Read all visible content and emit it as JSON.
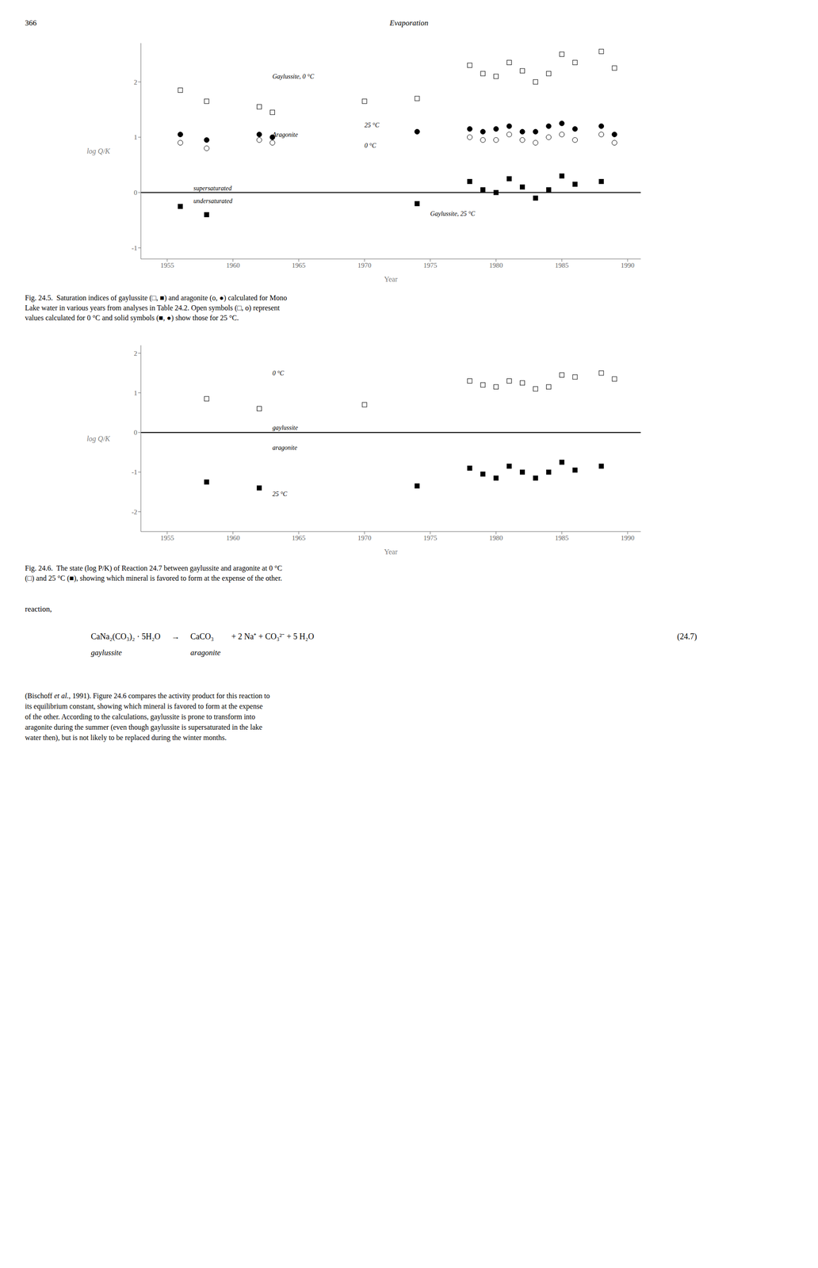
{
  "page_number": "366",
  "header_title": "Evaporation",
  "chart_data": [
    {
      "type": "scatter",
      "xlabel": "Year",
      "ylabel": "log Q/K",
      "xlim": [
        1953,
        1991
      ],
      "ylim": [
        -1.2,
        2.7
      ],
      "xticks": [
        1955,
        1960,
        1965,
        1970,
        1975,
        1980,
        1985,
        1990
      ],
      "yticks": [
        -1,
        0,
        1,
        2
      ],
      "grid": false,
      "reference_lines": [
        0
      ],
      "series": [
        {
          "marker": "open_square",
          "color": "#000000",
          "x": [
            1956,
            1958,
            1962,
            1963,
            1970,
            1974,
            1978,
            1979,
            1980,
            1981,
            1982,
            1983,
            1984,
            1985,
            1986,
            1988,
            1989
          ],
          "values": [
            1.85,
            1.65,
            1.55,
            1.45,
            1.65,
            1.7,
            2.3,
            2.15,
            2.1,
            2.35,
            2.2,
            2.0,
            2.15,
            2.5,
            2.35,
            2.55,
            2.25
          ]
        },
        {
          "marker": "filled_square",
          "color": "#000000",
          "x": [
            1956,
            1958,
            1974,
            1978,
            1979,
            1980,
            1981,
            1982,
            1983,
            1984,
            1985,
            1986,
            1988
          ],
          "values": [
            -0.25,
            -0.4,
            -0.2,
            0.2,
            0.05,
            0.0,
            0.25,
            0.1,
            -0.1,
            0.05,
            0.3,
            0.15,
            0.2
          ]
        },
        {
          "marker": "open_circle",
          "color": "#000000",
          "x": [
            1956,
            1958,
            1962,
            1963,
            1978,
            1979,
            1980,
            1981,
            1982,
            1983,
            1984,
            1985,
            1986,
            1988,
            1989
          ],
          "values": [
            0.9,
            0.8,
            0.95,
            0.9,
            1.0,
            0.95,
            0.95,
            1.05,
            0.95,
            0.9,
            1.0,
            1.05,
            0.95,
            1.05,
            0.9
          ]
        },
        {
          "marker": "filled_circle",
          "color": "#000000",
          "x": [
            1956,
            1958,
            1962,
            1963,
            1974,
            1978,
            1979,
            1980,
            1981,
            1982,
            1983,
            1984,
            1985,
            1986,
            1988,
            1989
          ],
          "values": [
            1.05,
            0.95,
            1.05,
            1.0,
            1.1,
            1.15,
            1.1,
            1.15,
            1.2,
            1.1,
            1.1,
            1.2,
            1.25,
            1.15,
            1.2,
            1.05
          ]
        }
      ],
      "annotations": [
        {
          "text": "Gaylussite, 0 °C",
          "x": 1963,
          "y": 2.1
        },
        {
          "text": "Gaylussite, 25 °C",
          "x": 1975,
          "y": -0.38
        },
        {
          "text": "Aragonite",
          "x": 1963,
          "y": 1.05
        },
        {
          "text": "25 °C",
          "x": 1970,
          "y": 1.22
        },
        {
          "text": "0 °C",
          "x": 1970,
          "y": 0.85
        },
        {
          "text": "supersaturated",
          "x": 1957,
          "y": 0.08
        },
        {
          "text": "undersaturated",
          "x": 1957,
          "y": -0.15
        }
      ],
      "caption": [
        "Fig. 24.5.  Saturation indices of gaylussite (□, ■) and aragonite (o, ●) calculated for Mono",
        "Lake water in various years from analyses in Table 24.2. Open symbols (□, o) represent",
        "values calculated for 0 °C and solid symbols (■, ●) show those for 25 °C."
      ]
    },
    {
      "type": "scatter",
      "xlabel": "Year",
      "ylabel": "log Q/K",
      "xlim": [
        1953,
        1991
      ],
      "ylim": [
        -2.5,
        2.2
      ],
      "xticks": [
        1955,
        1960,
        1965,
        1970,
        1975,
        1980,
        1985,
        1990
      ],
      "yticks": [
        -2,
        -1,
        0,
        1,
        2
      ],
      "grid": false,
      "reference_lines": [
        0
      ],
      "series": [
        {
          "marker": "open_square",
          "color": "#000000",
          "x": [
            1958,
            1962,
            1970,
            1978,
            1979,
            1980,
            1981,
            1982,
            1983,
            1984,
            1985,
            1986,
            1988,
            1989
          ],
          "values": [
            0.85,
            0.6,
            0.7,
            1.3,
            1.2,
            1.15,
            1.3,
            1.25,
            1.1,
            1.15,
            1.45,
            1.4,
            1.5,
            1.35
          ]
        },
        {
          "marker": "filled_square",
          "color": "#000000",
          "x": [
            1958,
            1962,
            1974,
            1978,
            1979,
            1980,
            1981,
            1982,
            1983,
            1984,
            1985,
            1986,
            1988
          ],
          "values": [
            -1.25,
            -1.4,
            -1.35,
            -0.9,
            -1.05,
            -1.15,
            -0.85,
            -1.0,
            -1.15,
            -1.0,
            -0.75,
            -0.95,
            -0.85
          ]
        }
      ],
      "annotations": [
        {
          "text": "0 °C",
          "x": 1963,
          "y": 1.5
        },
        {
          "text": "25 °C",
          "x": 1963,
          "y": -1.55
        },
        {
          "text": "gaylussite",
          "x": 1963,
          "y": 0.12
        },
        {
          "text": "aragonite",
          "x": 1963,
          "y": -0.38
        }
      ],
      "caption": [
        "Fig. 24.6.  The state (log Ρ/Κ) of Reaction 24.7 between gaylussite and aragonite at 0 °C",
        "(□) and 25 °C (■), showing which mineral is favored to form at the expense of the other."
      ]
    }
  ],
  "page_texts": {
    "reaction_label": "reaction,",
    "equation": [
      {
        "text": "CaNa₂(CO₃)₂ · 5H₂O",
        "label": "gaylussite"
      },
      {
        "text": "→"
      },
      {
        "text": "CaCO₃",
        "label": "aragonite"
      },
      {
        "text": "+ 2 Na⁺ + CO₃²⁻ + 5 H₂O"
      }
    ],
    "equation_number": "(24.7)",
    "paragraph": [
      [
        {
          "text": "(Bischoff "
        },
        {
          "text": "et al.",
          "italic": true
        },
        {
          "text": ", 1991). Figure 24.6 compares the activity product for this reaction to"
        }
      ],
      [
        {
          "text": "its equilibrium constant, showing which mineral is favored to form at the expense"
        }
      ],
      [
        {
          "text": "of the other. According to the calculations, gaylussite is prone to transform into"
        }
      ],
      [
        {
          "text": "aragonite during the summer (even though gaylussite is supersaturated in the lake"
        }
      ],
      [
        {
          "text": "water then), but is not likely to be replaced during the winter months."
        }
      ]
    ]
  }
}
